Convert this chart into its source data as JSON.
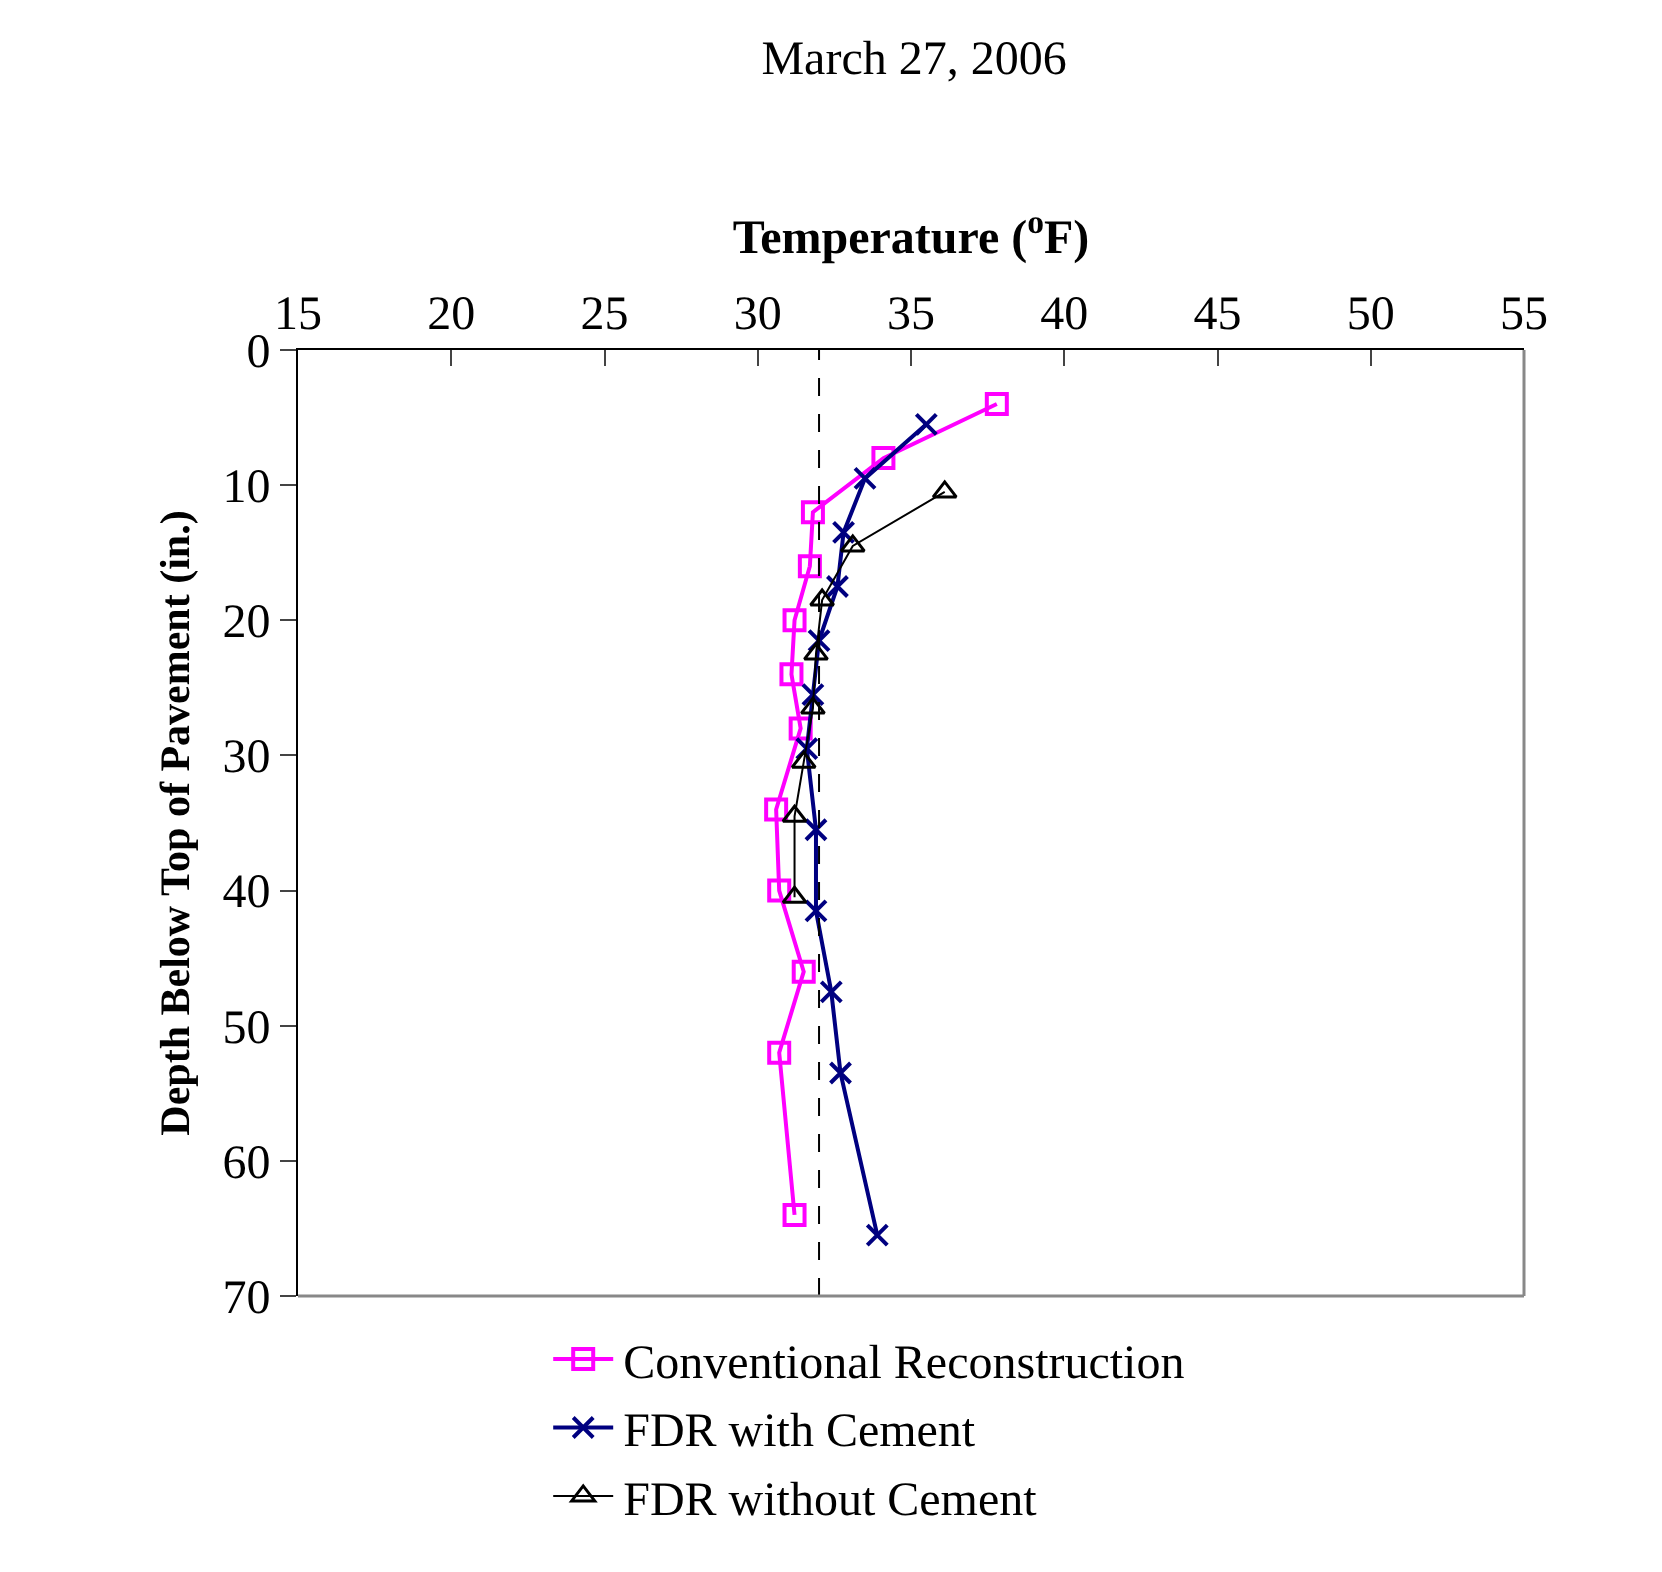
{
  "chart_data": {
    "type": "line",
    "title": "March 27, 2006",
    "xlabel": "Temperature ($^{o}$F)",
    "ylabel": "Depth Below Top of Pavement (in.)",
    "xlim": [
      15,
      55
    ],
    "xticks": [
      15,
      20,
      25,
      30,
      35,
      40,
      45,
      50,
      55
    ],
    "ylim": [
      70,
      0
    ],
    "yticks": [
      0,
      10,
      20,
      30,
      40,
      50,
      60,
      70
    ],
    "legend": "bottom",
    "ref_lines": [
      {
        "axis": "x",
        "value": 32,
        "color": "#000000",
        "line_style": "dashed"
      }
    ],
    "series": [
      {
        "name": "Conventional Reconstruction",
        "color": "#ff00ff",
        "marker": "square",
        "x": [
          37.8,
          34.1,
          31.8,
          31.7,
          31.2,
          31.1,
          31.4,
          30.6,
          30.7,
          31.5,
          30.7,
          31.2
        ],
        "values": [
          4,
          8,
          12,
          16,
          20,
          24,
          28,
          34,
          40,
          46,
          52,
          64
        ]
      },
      {
        "name": "FDR with Cement",
        "color": "#000080",
        "marker": "cross",
        "x": [
          35.5,
          33.5,
          32.8,
          32.6,
          32.0,
          31.8,
          31.6,
          31.9,
          31.9,
          32.4,
          32.7,
          33.9
        ],
        "values": [
          5.5,
          9.5,
          13.5,
          17.5,
          21.5,
          25.5,
          29.5,
          35.5,
          41.5,
          47.5,
          53.5,
          65.5
        ]
      },
      {
        "name": "FDR without Cement",
        "color": "#000000",
        "marker": "triangle",
        "x": [
          36.1,
          33.1,
          32.1,
          31.9,
          31.8,
          31.5,
          31.2,
          31.2
        ],
        "values": [
          10.5,
          14.5,
          18.5,
          22.5,
          26.5,
          30.5,
          34.5,
          40.5
        ]
      }
    ]
  }
}
